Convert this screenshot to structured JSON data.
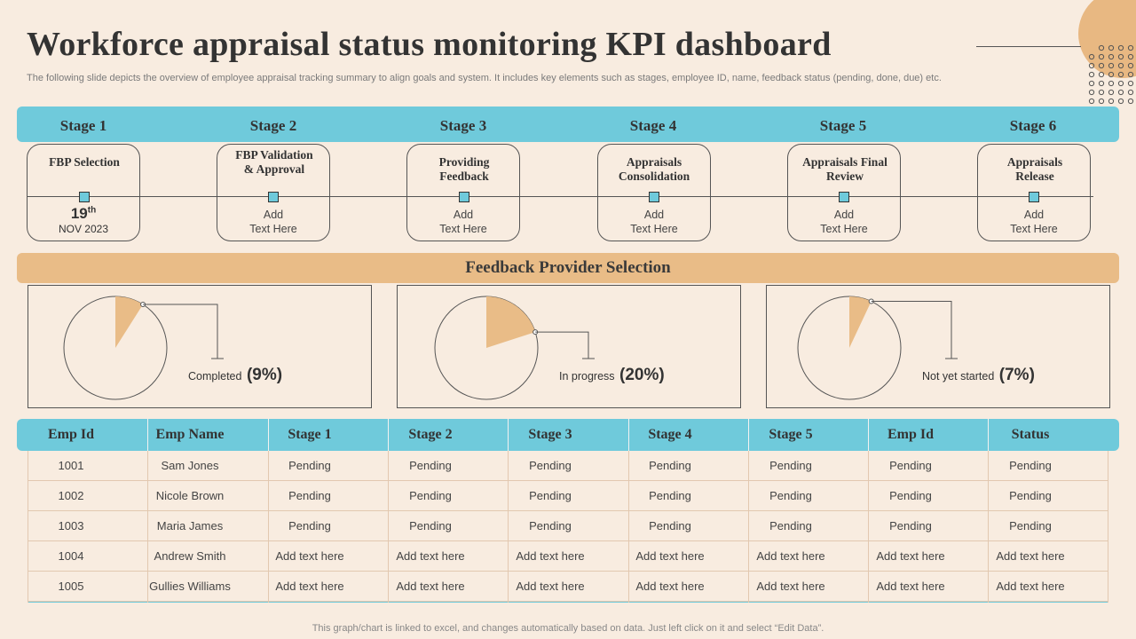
{
  "title": "Workforce appraisal status monitoring KPI dashboard",
  "subtitle": "The following slide depicts the overview of employee appraisal tracking summary to align goals and system. It includes key elements such as stages, employee ID, name, feedback status (pending, done, due) etc.",
  "colors": {
    "accent_blue": "#6fcadb",
    "accent_orange": "#e9bc87",
    "background": "#f8ece0"
  },
  "stages": [
    {
      "label": "Stage 1",
      "title": "FBP Selection",
      "day": "19",
      "day_suffix": "th",
      "month_year": "NOV 2023"
    },
    {
      "label": "Stage 2",
      "title": "FBP Validation & Approval",
      "text_1": "Add",
      "text_2": "Text Here"
    },
    {
      "label": "Stage 3",
      "title": "Providing Feedback",
      "text_1": "Add",
      "text_2": "Text Here"
    },
    {
      "label": "Stage 4",
      "title": "Appraisals Consolidation",
      "text_1": "Add",
      "text_2": "Text Here"
    },
    {
      "label": "Stage 5",
      "title": "Appraisals Final Review",
      "text_1": "Add",
      "text_2": "Text Here"
    },
    {
      "label": "Stage 6",
      "title": "Appraisals Release",
      "text_1": "Add",
      "text_2": "Text Here"
    }
  ],
  "feedback": {
    "heading": "Feedback Provider Selection"
  },
  "chart_data": [
    {
      "type": "pie",
      "label": "Completed",
      "value": 9,
      "display": "(9%)"
    },
    {
      "type": "pie",
      "label": "In progress",
      "value": 20,
      "display": "(20%)"
    },
    {
      "type": "pie",
      "label": "Not yet started",
      "value": 7,
      "display": "(7%)"
    }
  ],
  "table": {
    "headers": [
      "Emp Id",
      "Emp Name",
      "Stage 1",
      "Stage 2",
      "Stage 3",
      "Stage 4",
      "Stage 5",
      "Emp Id",
      "Status"
    ],
    "rows": [
      [
        "1001",
        "Sam Jones",
        "Pending",
        "Pending",
        "Pending",
        "Pending",
        "Pending",
        "Pending",
        "Pending"
      ],
      [
        "1002",
        "Nicole Brown",
        "Pending",
        "Pending",
        "Pending",
        "Pending",
        "Pending",
        "Pending",
        "Pending"
      ],
      [
        "1003",
        "Maria James",
        "Pending",
        "Pending",
        "Pending",
        "Pending",
        "Pending",
        "Pending",
        "Pending"
      ],
      [
        "1004",
        "Andrew  Smith",
        "Add text here",
        "Add text here",
        "Add text here",
        "Add text here",
        "Add text here",
        "Add text here",
        "Add text here"
      ],
      [
        "1005",
        "Gullies Williams",
        "Add text here",
        "Add text here",
        "Add text here",
        "Add text here",
        "Add text here",
        "Add text here",
        "Add text here"
      ]
    ]
  },
  "footnote": "This graph/chart is linked to excel,  and changes automatically based on data. Just left click on it and select “Edit Data”."
}
